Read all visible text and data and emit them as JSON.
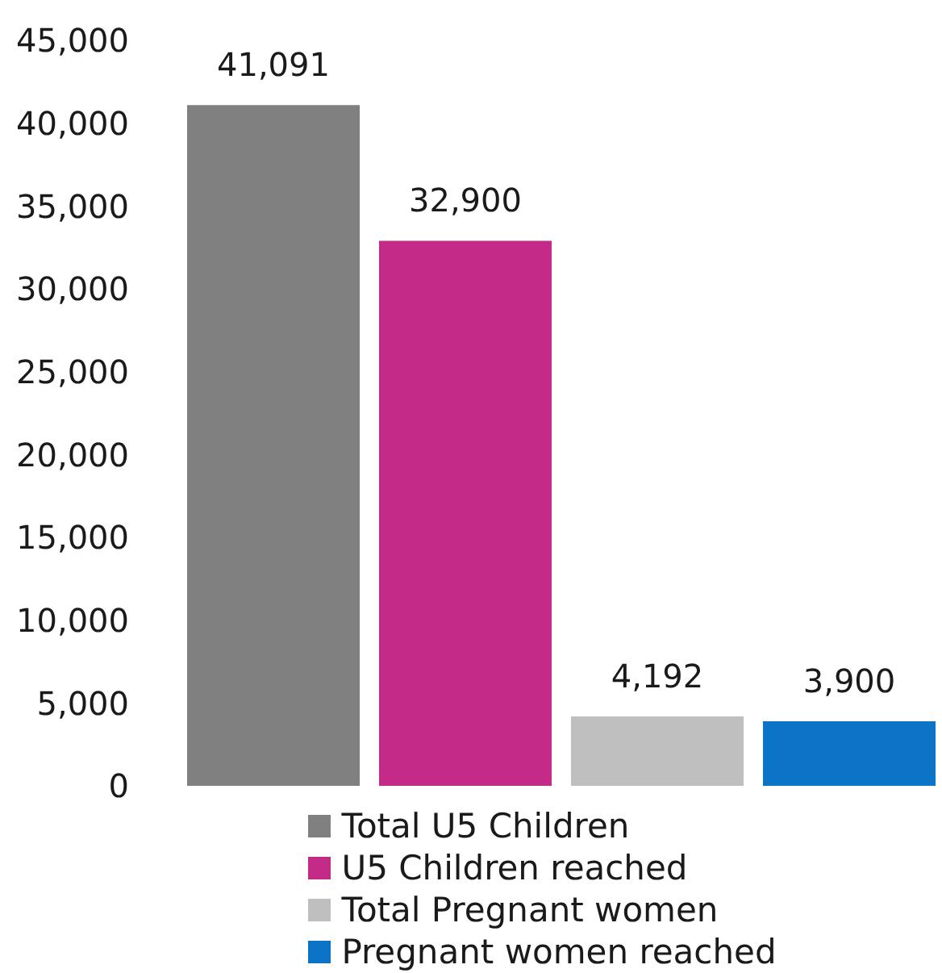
{
  "chart_data": {
    "type": "bar",
    "categories": [
      null
    ],
    "series": [
      {
        "name": "Total U5 Children",
        "color": "#808080",
        "values": [
          41091
        ],
        "value_labels": [
          "41,091"
        ]
      },
      {
        "name": "U5 Children reached",
        "color": "#c42a88",
        "values": [
          32900
        ],
        "value_labels": [
          "32,900"
        ]
      },
      {
        "name": "Total Pregnant women",
        "color": "#bfbfbf",
        "values": [
          4192
        ],
        "value_labels": [
          "4,192"
        ]
      },
      {
        "name": "Pregnant women reached",
        "color": "#0b74c6",
        "values": [
          3900
        ],
        "value_labels": [
          "3,900"
        ]
      }
    ],
    "ylim": [
      0,
      45000
    ],
    "yticks": [
      0,
      {
        "value": 5000,
        "label": "5,000"
      },
      {
        "value": 10000,
        "label": "10,000"
      },
      {
        "value": 15000,
        "label": "15,000"
      },
      {
        "value": 20000,
        "label": "20,000"
      },
      {
        "value": 25000,
        "label": "25,000"
      },
      {
        "value": 30000,
        "label": "30,000"
      },
      {
        "value": 35000,
        "label": "35,000"
      },
      {
        "value": 40000,
        "label": "40,000"
      },
      {
        "value": 45000,
        "label": "45,000"
      }
    ],
    "legend": "bottom"
  }
}
